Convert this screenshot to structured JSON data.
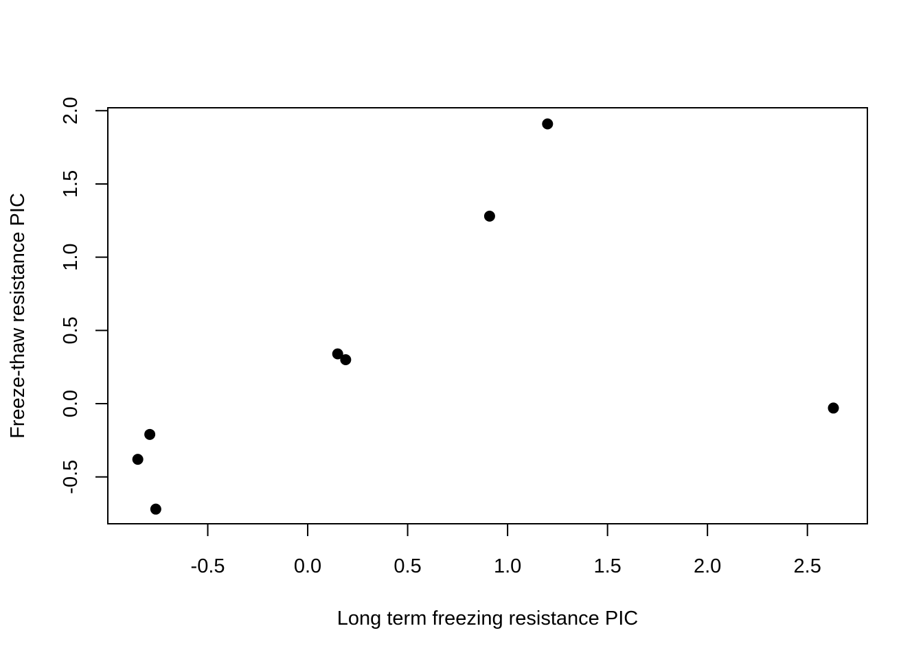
{
  "chart_data": {
    "type": "scatter",
    "title": "",
    "xlabel": "Long term freezing resistance PIC",
    "ylabel": "Freeze-thaw resistance PIC",
    "xlim": [
      -1.0,
      2.8
    ],
    "ylim": [
      -0.82,
      2.02
    ],
    "x_ticks": [
      -0.5,
      0.0,
      0.5,
      1.0,
      1.5,
      2.0,
      2.5
    ],
    "x_tick_labels": [
      "-0.5",
      "0.0",
      "0.5",
      "1.0",
      "1.5",
      "2.0",
      "2.5"
    ],
    "y_ticks": [
      -0.5,
      0.0,
      0.5,
      1.0,
      1.5,
      2.0
    ],
    "y_tick_labels": [
      "-0.5",
      "0.0",
      "0.5",
      "1.0",
      "1.5",
      "2.0"
    ],
    "grid": false,
    "legend": "none",
    "marker": "filled-circle",
    "point_color": "#000000",
    "points": [
      {
        "x": -0.85,
        "y": -0.38
      },
      {
        "x": -0.79,
        "y": -0.21
      },
      {
        "x": -0.76,
        "y": -0.72
      },
      {
        "x": 0.15,
        "y": 0.34
      },
      {
        "x": 0.19,
        "y": 0.3
      },
      {
        "x": 0.91,
        "y": 1.28
      },
      {
        "x": 1.2,
        "y": 1.91
      },
      {
        "x": 2.63,
        "y": -0.03
      }
    ]
  }
}
